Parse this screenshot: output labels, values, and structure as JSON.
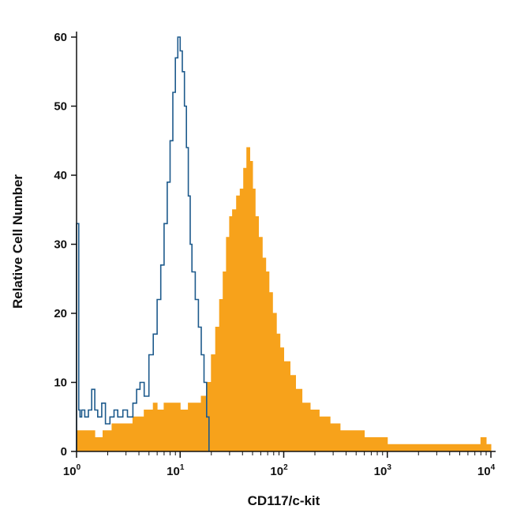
{
  "chart_data": {
    "type": "area",
    "title": "",
    "xlabel": "CD117/c-kit",
    "ylabel": "Relative Cell Number",
    "x_scale": "log",
    "xlim": [
      1,
      10000
    ],
    "ylim": [
      0,
      60
    ],
    "grid": false,
    "legend": "none",
    "x_ticks": [
      {
        "value": 1,
        "base": "10",
        "exp": "0"
      },
      {
        "value": 10,
        "base": "10",
        "exp": "1"
      },
      {
        "value": 100,
        "base": "10",
        "exp": "2"
      },
      {
        "value": 1000,
        "base": "10",
        "exp": "3"
      },
      {
        "value": 10000,
        "base": "10",
        "exp": "4"
      }
    ],
    "y_ticks": [
      0,
      10,
      20,
      30,
      40,
      50,
      60
    ],
    "series": [
      {
        "style": "outline",
        "color": "#1d5a8c",
        "x": [
          1.0,
          1.05,
          1.08,
          1.12,
          1.2,
          1.3,
          1.4,
          1.5,
          1.6,
          1.75,
          1.9,
          2.1,
          2.3,
          2.5,
          2.8,
          3.1,
          3.5,
          3.8,
          4.1,
          4.5,
          5.0,
          5.5,
          6.0,
          6.5,
          7.0,
          7.5,
          8.0,
          8.5,
          9.0,
          9.5,
          10.0,
          10.5,
          11.0,
          11.5,
          12.0,
          12.5,
          13.0,
          14.0,
          15.0,
          16.0,
          17.0,
          18.0,
          19.0
        ],
        "y": [
          33,
          6,
          5,
          6,
          5,
          6,
          9,
          6,
          5,
          7,
          4,
          5,
          6,
          5,
          6,
          5,
          7,
          9,
          10,
          8,
          14,
          17,
          22,
          27,
          33,
          39,
          45,
          52,
          57,
          60,
          58,
          55,
          50,
          44,
          37,
          30,
          26,
          22,
          18,
          14,
          10,
          5,
          0
        ]
      },
      {
        "style": "filled",
        "color": "#f7a21b",
        "x": [
          1.0,
          1.2,
          1.5,
          1.8,
          2.2,
          2.6,
          3.0,
          3.5,
          4.0,
          4.5,
          5.0,
          5.5,
          6.0,
          7.0,
          8.0,
          9.0,
          10.0,
          12.0,
          14.0,
          16.0,
          18.0,
          20.0,
          22.0,
          24.0,
          26.0,
          28.0,
          30.0,
          32.0,
          35.0,
          38.0,
          41.0,
          44.0,
          47.0,
          50.0,
          53.0,
          57.0,
          62.0,
          67.0,
          72.0,
          78.0,
          85.0,
          92.0,
          100.0,
          115.0,
          130.0,
          150.0,
          180.0,
          220.0,
          280.0,
          350.0,
          450.0,
          600.0,
          800.0,
          1000.0,
          1500.0,
          2000.0,
          3000.0,
          5000.0,
          7000.0,
          8000.0,
          9000.0,
          10000.0
        ],
        "y": [
          3,
          3,
          2,
          3,
          4,
          4,
          4,
          5,
          5,
          6,
          6,
          7,
          6,
          7,
          7,
          7,
          6,
          7,
          7,
          8,
          10,
          14,
          18,
          22,
          26,
          31,
          34,
          35,
          37,
          38,
          41,
          44,
          42,
          38,
          34,
          31,
          28,
          26,
          23,
          20,
          17,
          15,
          13,
          11,
          9,
          7,
          6,
          5,
          4,
          3,
          3,
          2,
          2,
          1,
          1,
          1,
          1,
          1,
          1,
          2,
          1,
          0
        ]
      }
    ]
  }
}
